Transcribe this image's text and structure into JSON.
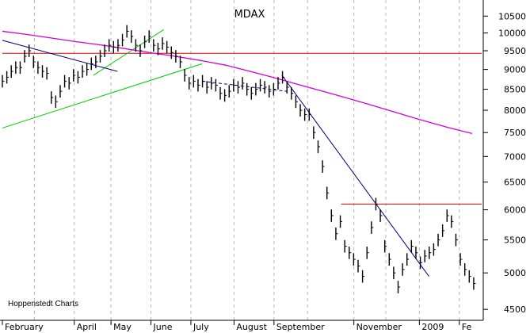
{
  "chart_data": {
    "type": "line",
    "title": "MDAX",
    "source_label": "Hoppenstedt Charts",
    "x_tick_labels": [
      "February",
      "April",
      "May",
      "June",
      "July",
      "August",
      "September",
      "November",
      "2009",
      "Fe"
    ],
    "y_ticks": [
      4500,
      5000,
      5500,
      6000,
      6500,
      7000,
      7500,
      8000,
      8500,
      9000,
      9500,
      10000,
      10500
    ],
    "y_scale": "log",
    "ylim": [
      4400,
      10950
    ],
    "grid": "vertical dashed at month starts",
    "series": [
      {
        "style": "bars",
        "color": "#000000",
        "values": [
          8700,
          8800,
          8950,
          9050,
          9050,
          9350,
          9500,
          9200,
          9050,
          8950,
          8900,
          8300,
          8200,
          8450,
          8700,
          8650,
          8850,
          8800,
          8950,
          9000,
          9150,
          9200,
          9350,
          9500,
          9650,
          9600,
          9650,
          9800,
          10050,
          9900,
          9650,
          9500,
          9750,
          9900,
          9650,
          9550,
          9700,
          9600,
          9450,
          9350,
          9200,
          8850,
          8650,
          8700,
          8600,
          8700,
          8550,
          8650,
          8600,
          8400,
          8350,
          8450,
          8600,
          8550,
          8650,
          8500,
          8400,
          8500,
          8600,
          8550,
          8450,
          8500,
          8650,
          8800,
          8550,
          8400,
          8200,
          8000,
          7900,
          7900,
          7500,
          7200,
          6800,
          6300,
          5900,
          5600,
          5800,
          5400,
          5300,
          5200,
          5100,
          4950,
          5300,
          5700,
          6100,
          5900,
          5400,
          5200,
          5000,
          4800,
          5050,
          5200,
          5400,
          5300,
          5150,
          5250,
          5300,
          5350,
          5500,
          5650,
          5900,
          5800,
          5500,
          5200,
          5050,
          4950,
          4850
        ]
      },
      {
        "style": "line",
        "color": "#d400d4",
        "x": [
          0,
          15,
          30,
          45,
          60,
          75,
          85,
          95,
          105,
          115,
          125,
          140,
          155,
          170,
          185,
          210,
          230,
          260,
          280,
          294
        ],
        "values": [
          10050,
          9960,
          9860,
          9760,
          9670,
          9570,
          9500,
          9430,
          9370,
          9300,
          9230,
          9110,
          8950,
          8790,
          8620,
          8350,
          8130,
          7800,
          7600,
          7480
        ]
      }
    ],
    "annotations": [
      {
        "type": "hline",
        "color": "#dd0000",
        "y": 9430
      },
      {
        "type": "hline",
        "color": "#dd0000",
        "y": 6100
      },
      {
        "type": "trendline",
        "color": "#00cc00",
        "from": [
          0,
          7600
        ],
        "to": [
          125,
          9150
        ]
      },
      {
        "type": "trendline",
        "color": "#00cc00",
        "from": [
          57,
          8850
        ],
        "to": [
          101,
          10100
        ]
      },
      {
        "type": "trendline",
        "color": "#000080",
        "from": [
          0,
          9790
        ],
        "to": [
          72,
          8950
        ]
      },
      {
        "type": "trendline",
        "color": "#000080",
        "from": [
          175,
          8850
        ],
        "to": [
          267,
          4950
        ]
      },
      {
        "type": "trendline",
        "color": "#000080",
        "dashed": true,
        "from": [
          125,
          8700
        ],
        "to": [
          178,
          8450
        ]
      }
    ]
  }
}
